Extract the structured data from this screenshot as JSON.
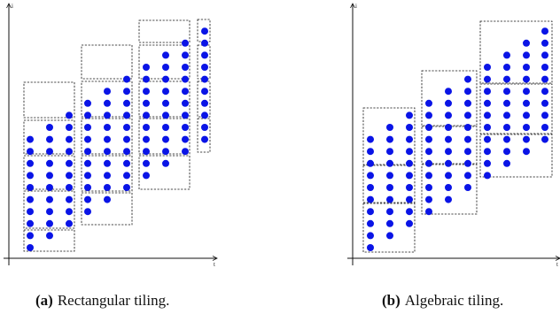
{
  "figures": [
    {
      "id": "a",
      "caption_tag": "(a)",
      "caption_text": "Rectangular tiling.",
      "axis_y_label": "i",
      "axis_x_label": "t"
    },
    {
      "id": "b",
      "caption_tag": "(b)",
      "caption_text": "Algebraic tiling.",
      "axis_y_label": "i",
      "axis_x_label": "t"
    }
  ],
  "colors": {
    "point": "#0a14e6",
    "axis": "#111111",
    "tile_border": "#111111"
  }
}
